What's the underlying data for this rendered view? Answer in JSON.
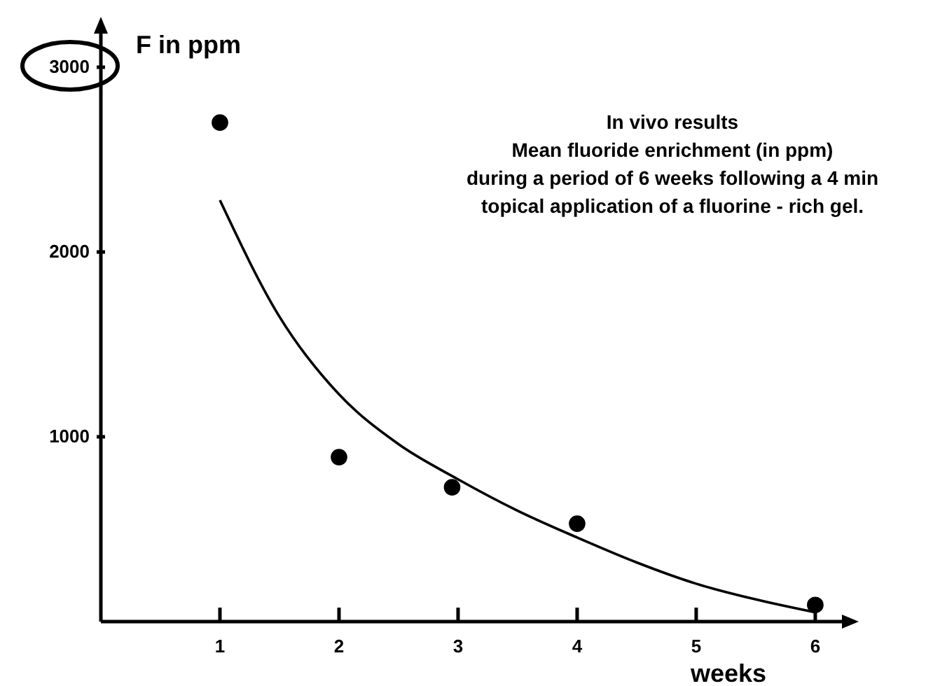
{
  "chart_data": {
    "type": "scatter",
    "title": "In vivo results",
    "subtitle": "Mean fluoride enrichment (in ppm)\nduring a period of 6 weeks following a 4 min\ntopical application of a fluorine - rich gel.",
    "xlabel": "weeks",
    "ylabel": "F in ppm",
    "xlim": [
      0,
      6.33
    ],
    "ylim": [
      0,
      3250
    ],
    "xticks": [
      1,
      2,
      3,
      4,
      5,
      6
    ],
    "yticks": [
      1000,
      2000,
      3000
    ],
    "grid": false,
    "marker": "circle",
    "series": [
      {
        "color": "#000000",
        "x": [
          1,
          2,
          2.95,
          4,
          6
        ],
        "values": [
          2700,
          890,
          727,
          530,
          90
        ]
      },
      {
        "type": "line",
        "color": "#000000",
        "line_style": "solid",
        "marker": "none",
        "x": [
          1,
          1.5,
          2,
          2.5,
          3,
          3.5,
          4,
          4.5,
          5,
          5.5,
          6
        ],
        "values": [
          2280,
          1650,
          1230,
          960,
          770,
          600,
          455,
          320,
          205,
          120,
          50
        ]
      }
    ]
  }
}
